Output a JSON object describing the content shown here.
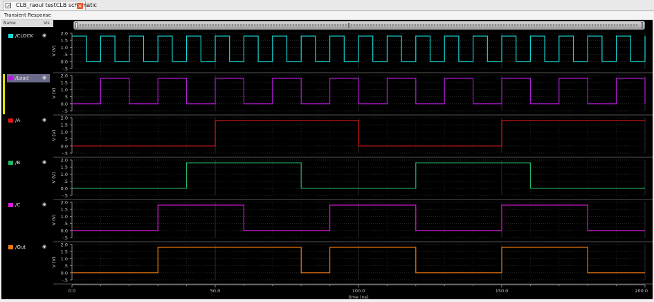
{
  "window": {
    "tab_title": "CLB_raoul testCLB schematic",
    "panel_title": "Transient Response",
    "name_header": "Name",
    "vis_header": "Vis"
  },
  "sidebar": {
    "items": [
      {
        "label": "/CLOCK",
        "color": "#19d8d8"
      },
      {
        "label": "/Load",
        "color": "#b21bd8"
      },
      {
        "label": "/A",
        "color": "#e01818"
      },
      {
        "label": "/B",
        "color": "#1fb86a"
      },
      {
        "label": "/C",
        "color": "#d81bd8"
      },
      {
        "label": "/Out",
        "color": "#f07a10"
      }
    ]
  },
  "chart_data": {
    "type": "line",
    "xlabel": "time (ns)",
    "xlim": [
      0,
      200
    ],
    "xticks": [
      0,
      50,
      100,
      150,
      200
    ],
    "xtick_labels": [
      "0.0",
      "50.0",
      "100.0",
      "150.0",
      "200.0"
    ],
    "ylabel": "V (V)",
    "ylim": [
      -0.5,
      2.0
    ],
    "yticks": [
      -0.5,
      0.0,
      0.5,
      1.0,
      1.5,
      2.0
    ],
    "ytick_labels": [
      "-.5",
      "0.0",
      ".5",
      "1.0",
      "1.5",
      "2.0"
    ],
    "grid": true,
    "series": [
      {
        "name": "/CLOCK",
        "color": "#19d8d8",
        "low": 0.0,
        "high": 1.8,
        "period": 10,
        "high_start": 0,
        "high_end": 5
      },
      {
        "name": "/Load",
        "color": "#b21bd8",
        "low": 0.0,
        "high": 1.8,
        "period": 20,
        "high_start": 10,
        "high_end": 20
      },
      {
        "name": "/A",
        "color": "#e01818",
        "low": 0.0,
        "high": 1.8,
        "edges": [
          [
            0,
            0
          ],
          [
            50,
            1.8
          ],
          [
            100,
            0
          ],
          [
            150,
            1.8
          ]
        ]
      },
      {
        "name": "/B",
        "color": "#1fb86a",
        "low": 0.0,
        "high": 1.8,
        "edges": [
          [
            0,
            0
          ],
          [
            40,
            1.8
          ],
          [
            80,
            0
          ],
          [
            120,
            1.8
          ],
          [
            160,
            0
          ]
        ]
      },
      {
        "name": "/C",
        "color": "#d81bd8",
        "low": 0.0,
        "high": 1.8,
        "edges": [
          [
            0,
            0
          ],
          [
            30,
            1.8
          ],
          [
            60,
            0
          ],
          [
            90,
            1.8
          ],
          [
            120,
            0
          ],
          [
            150,
            1.8
          ],
          [
            180,
            0
          ]
        ]
      },
      {
        "name": "/Out",
        "color": "#f07a10",
        "low": 0.0,
        "high": 1.8,
        "edges": [
          [
            0,
            0
          ],
          [
            30,
            1.8
          ],
          [
            80,
            0
          ],
          [
            90,
            1.8
          ],
          [
            120,
            0
          ],
          [
            150,
            1.8
          ],
          [
            180,
            0
          ]
        ]
      }
    ]
  }
}
